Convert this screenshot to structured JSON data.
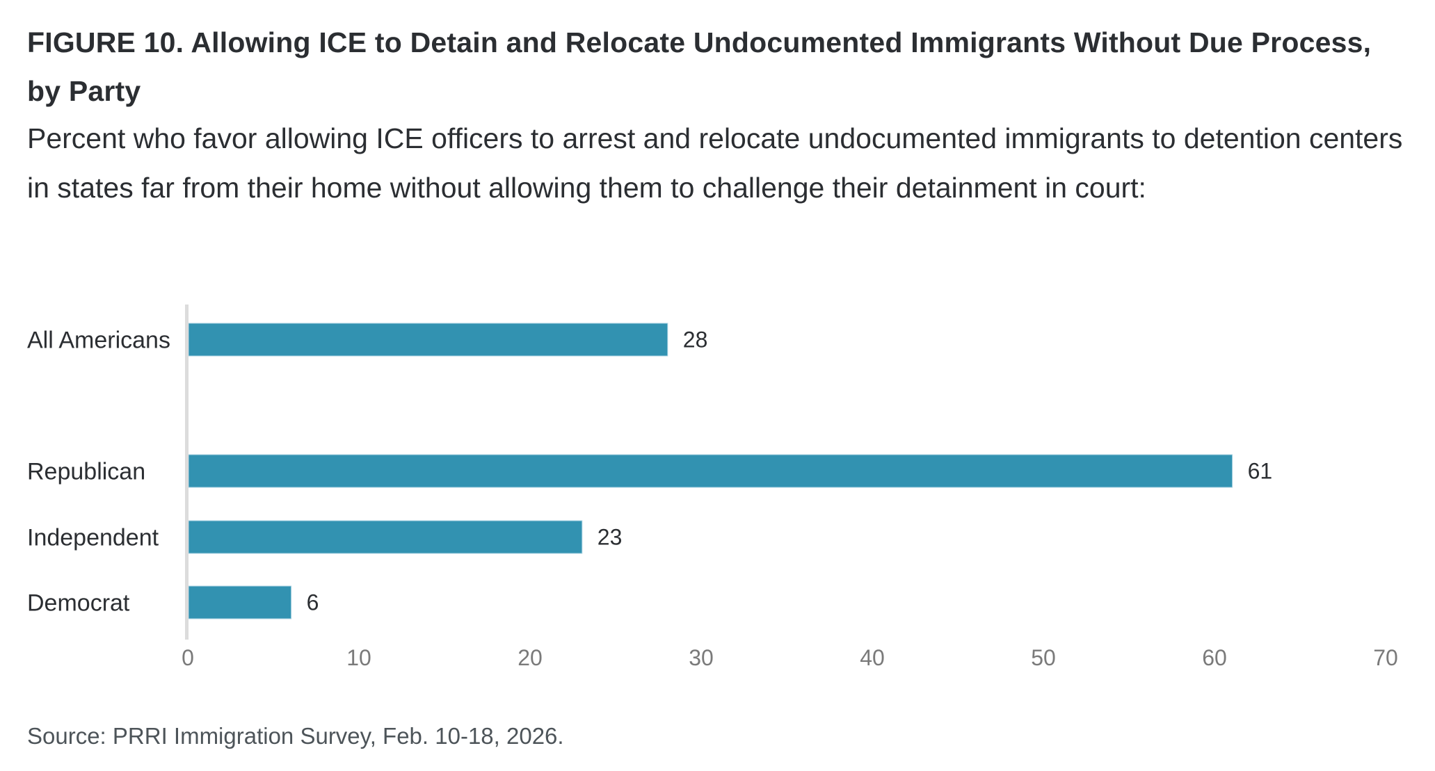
{
  "header": {
    "title": "FIGURE 10.  Allowing ICE to Detain and Relocate Undocumented Immigrants Without Due Process, by Party",
    "subtitle": "Percent who favor allowing ICE officers to arrest and relocate undocumented immigrants to detention centers in states far from their home without allowing them to challenge their detainment in court:"
  },
  "footer": {
    "source": "Source: PRRI Immigration Survey, Feb. 10-18, 2026."
  },
  "colors": {
    "bar": "#3292b1",
    "bar_edge": "#a9d2e2",
    "axis": "#dcdcdc",
    "tick_text": "#7a7a7a"
  },
  "chart_data": {
    "type": "bar",
    "orientation": "horizontal",
    "title": "FIGURE 10.  Allowing ICE to Detain and Relocate Undocumented Immigrants Without Due Process, by Party",
    "subtitle": "Percent who favor allowing ICE officers to arrest and relocate undocumented immigrants to detention centers in states far from their home without allowing them to challenge their detainment in court:",
    "categories": [
      "All Americans",
      "Republican",
      "Independent",
      "Democrat"
    ],
    "values": [
      28,
      61,
      23,
      6
    ],
    "groups": [
      [
        "All Americans"
      ],
      [
        "Republican",
        "Independent",
        "Democrat"
      ]
    ],
    "data_labels": [
      "28",
      "61",
      "23",
      "6"
    ],
    "xlabel": "",
    "ylabel": "",
    "xlim": [
      0,
      70
    ],
    "xticks": [
      0,
      10,
      20,
      30,
      40,
      50,
      60,
      70
    ],
    "grid": false,
    "legend": "none"
  }
}
